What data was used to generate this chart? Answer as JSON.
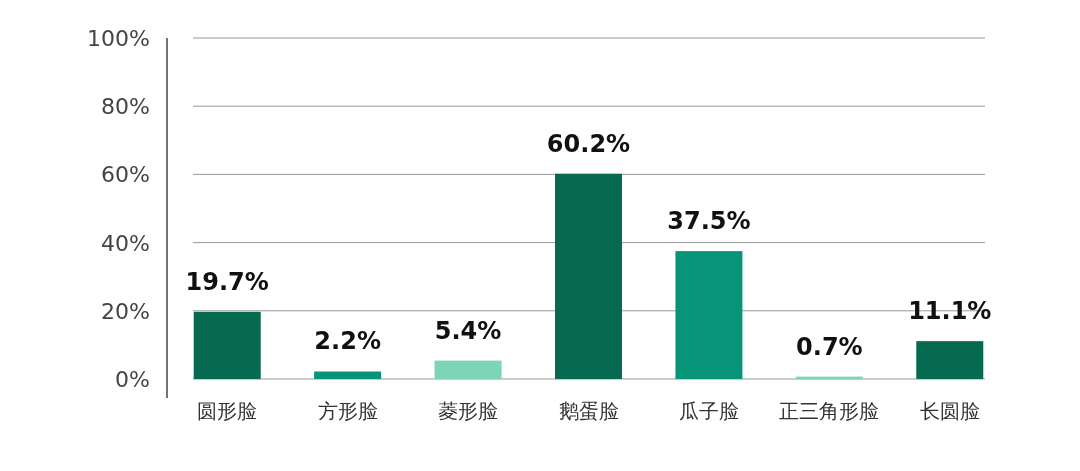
{
  "chart_data": {
    "type": "bar",
    "categories": [
      "圆形脸",
      "方形脸",
      "菱形脸",
      "鹅蛋脸",
      "瓜子脸",
      "正三角形脸",
      "长圆脸"
    ],
    "values": [
      19.7,
      2.2,
      5.4,
      60.2,
      37.5,
      0.7,
      11.1
    ],
    "colors": [
      "#066a50",
      "#079479",
      "#7dd5b9",
      "#066a50",
      "#079479",
      "#7dd5b9",
      "#066a50"
    ],
    "value_labels": [
      "19.7%",
      "2.2%",
      "5.4%",
      "60.2%",
      "37.5%",
      "0.7%",
      "11.1%"
    ],
    "ylim": [
      0,
      100
    ],
    "yticks": [
      {
        "value": 0,
        "label": "0%"
      },
      {
        "value": 20,
        "label": "20%"
      },
      {
        "value": 40,
        "label": "40%"
      },
      {
        "value": 60,
        "label": "60%"
      },
      {
        "value": 80,
        "label": "80%"
      },
      {
        "value": 100,
        "label": "100%"
      }
    ],
    "grid": "y"
  }
}
